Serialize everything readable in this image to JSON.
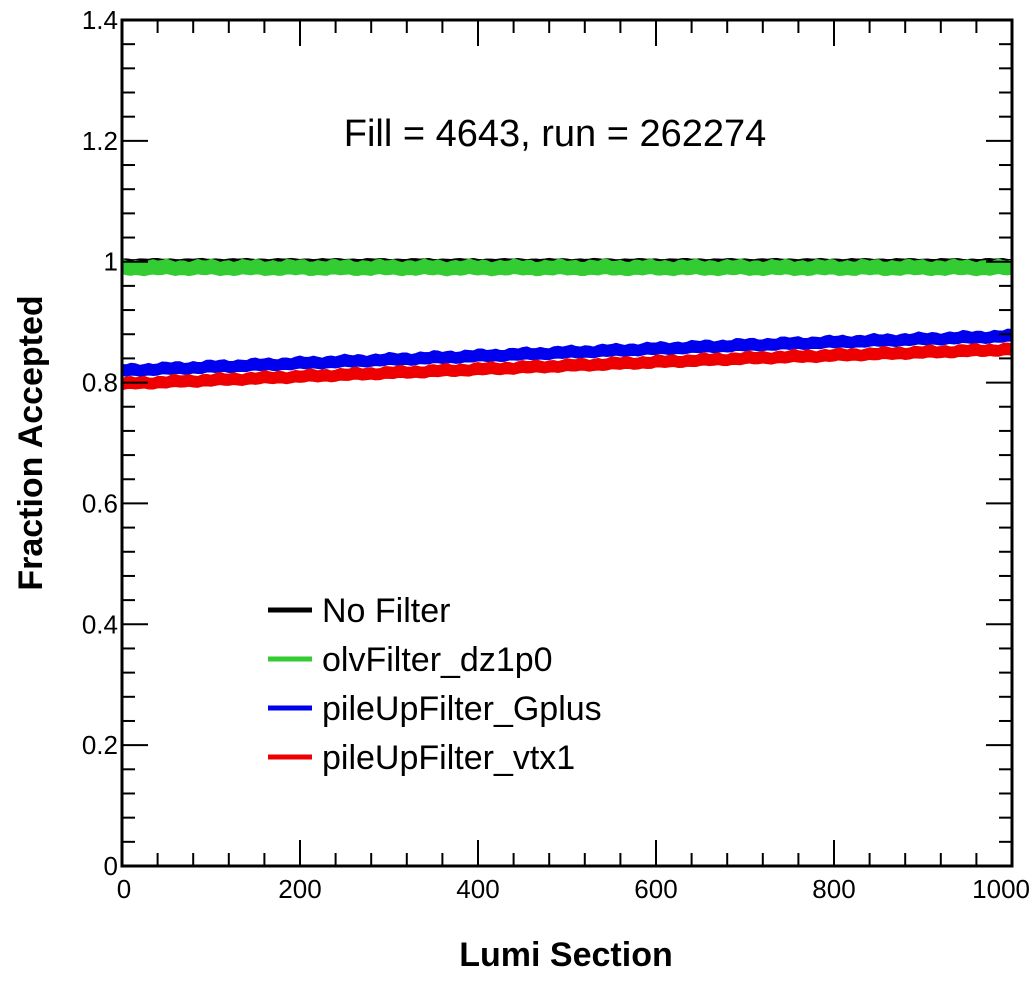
{
  "chart_data": {
    "type": "line",
    "title": "",
    "annotation": "Fill = 4643, run = 262274",
    "xlabel": "Lumi Section",
    "ylabel": "Fraction Accepted",
    "xlim": [
      0,
      1000
    ],
    "ylim": [
      0,
      1.4
    ],
    "xticks": [
      0,
      200,
      400,
      600,
      800,
      1000
    ],
    "xtick_labels": [
      "0",
      "200",
      "400",
      "600",
      "800",
      "1000"
    ],
    "yticks": [
      0,
      0.2,
      0.4,
      0.6,
      0.8,
      1,
      1.2,
      1.4
    ],
    "ytick_labels": [
      "0",
      "0.2",
      "0.4",
      "0.6",
      "0.8",
      "1",
      "1.2",
      "1.4"
    ],
    "grid": false,
    "legend_position": "lower-left",
    "x": [
      0,
      100,
      200,
      300,
      400,
      500,
      600,
      700,
      800,
      900,
      1000
    ],
    "series": [
      {
        "name": "No Filter",
        "color": "#000000",
        "values": [
          1.0,
          1.0,
          1.0,
          1.0,
          1.0,
          1.0,
          1.0,
          1.0,
          1.0,
          1.0,
          1.0
        ],
        "spread": 0.004
      },
      {
        "name": "olvFilter_dz1p0",
        "color": "#33cc33",
        "values": [
          0.99,
          0.99,
          0.99,
          0.99,
          0.99,
          0.99,
          0.99,
          0.99,
          0.99,
          0.99,
          0.99
        ],
        "spread": 0.011
      },
      {
        "name": "pileUpFilter_Gplus",
        "color": "#0000ee",
        "values": [
          0.82,
          0.826,
          0.832,
          0.838,
          0.844,
          0.85,
          0.856,
          0.862,
          0.867,
          0.872,
          0.877
        ],
        "spread": 0.009
      },
      {
        "name": "pileUpFilter_vtx1",
        "color": "#ee0000",
        "values": [
          0.798,
          0.804,
          0.81,
          0.816,
          0.822,
          0.828,
          0.834,
          0.84,
          0.845,
          0.85,
          0.855
        ],
        "spread": 0.009
      }
    ]
  }
}
